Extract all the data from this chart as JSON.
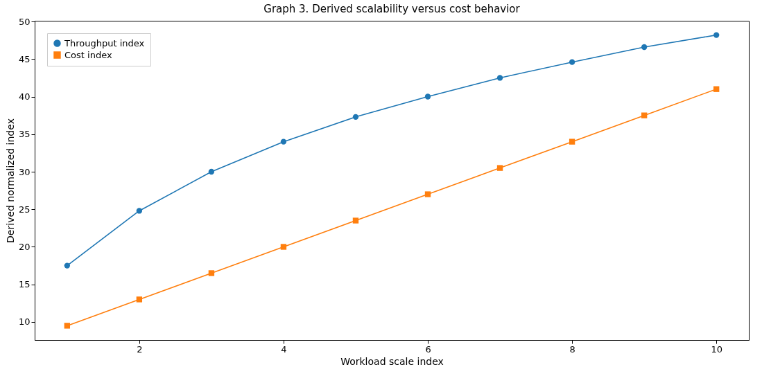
{
  "chart_data": {
    "type": "line",
    "title": "Graph 3. Derived scalability versus cost behavior",
    "xlabel": "Workload scale index",
    "ylabel": "Derived normalized index",
    "x": [
      1,
      2,
      3,
      4,
      5,
      6,
      7,
      8,
      9,
      10
    ],
    "series": [
      {
        "name": "Throughput index",
        "color": "#1f77b4",
        "marker": "circle",
        "values": [
          17.5,
          24.8,
          30,
          34,
          37.3,
          40,
          42.5,
          44.6,
          46.6,
          48.2
        ]
      },
      {
        "name": "Cost index",
        "color": "#ff7f0e",
        "marker": "square",
        "values": [
          9.5,
          13,
          16.5,
          20,
          23.5,
          27,
          30.5,
          34,
          37.5,
          41
        ]
      }
    ],
    "xlim": [
      0.55,
      10.45
    ],
    "ylim": [
      7.6,
      50.1
    ],
    "xticks": [
      2,
      4,
      6,
      8,
      10
    ],
    "yticks": [
      10,
      15,
      20,
      25,
      30,
      35,
      40,
      45,
      50
    ],
    "grid": false,
    "legend": "top left",
    "line_style": "solid"
  }
}
